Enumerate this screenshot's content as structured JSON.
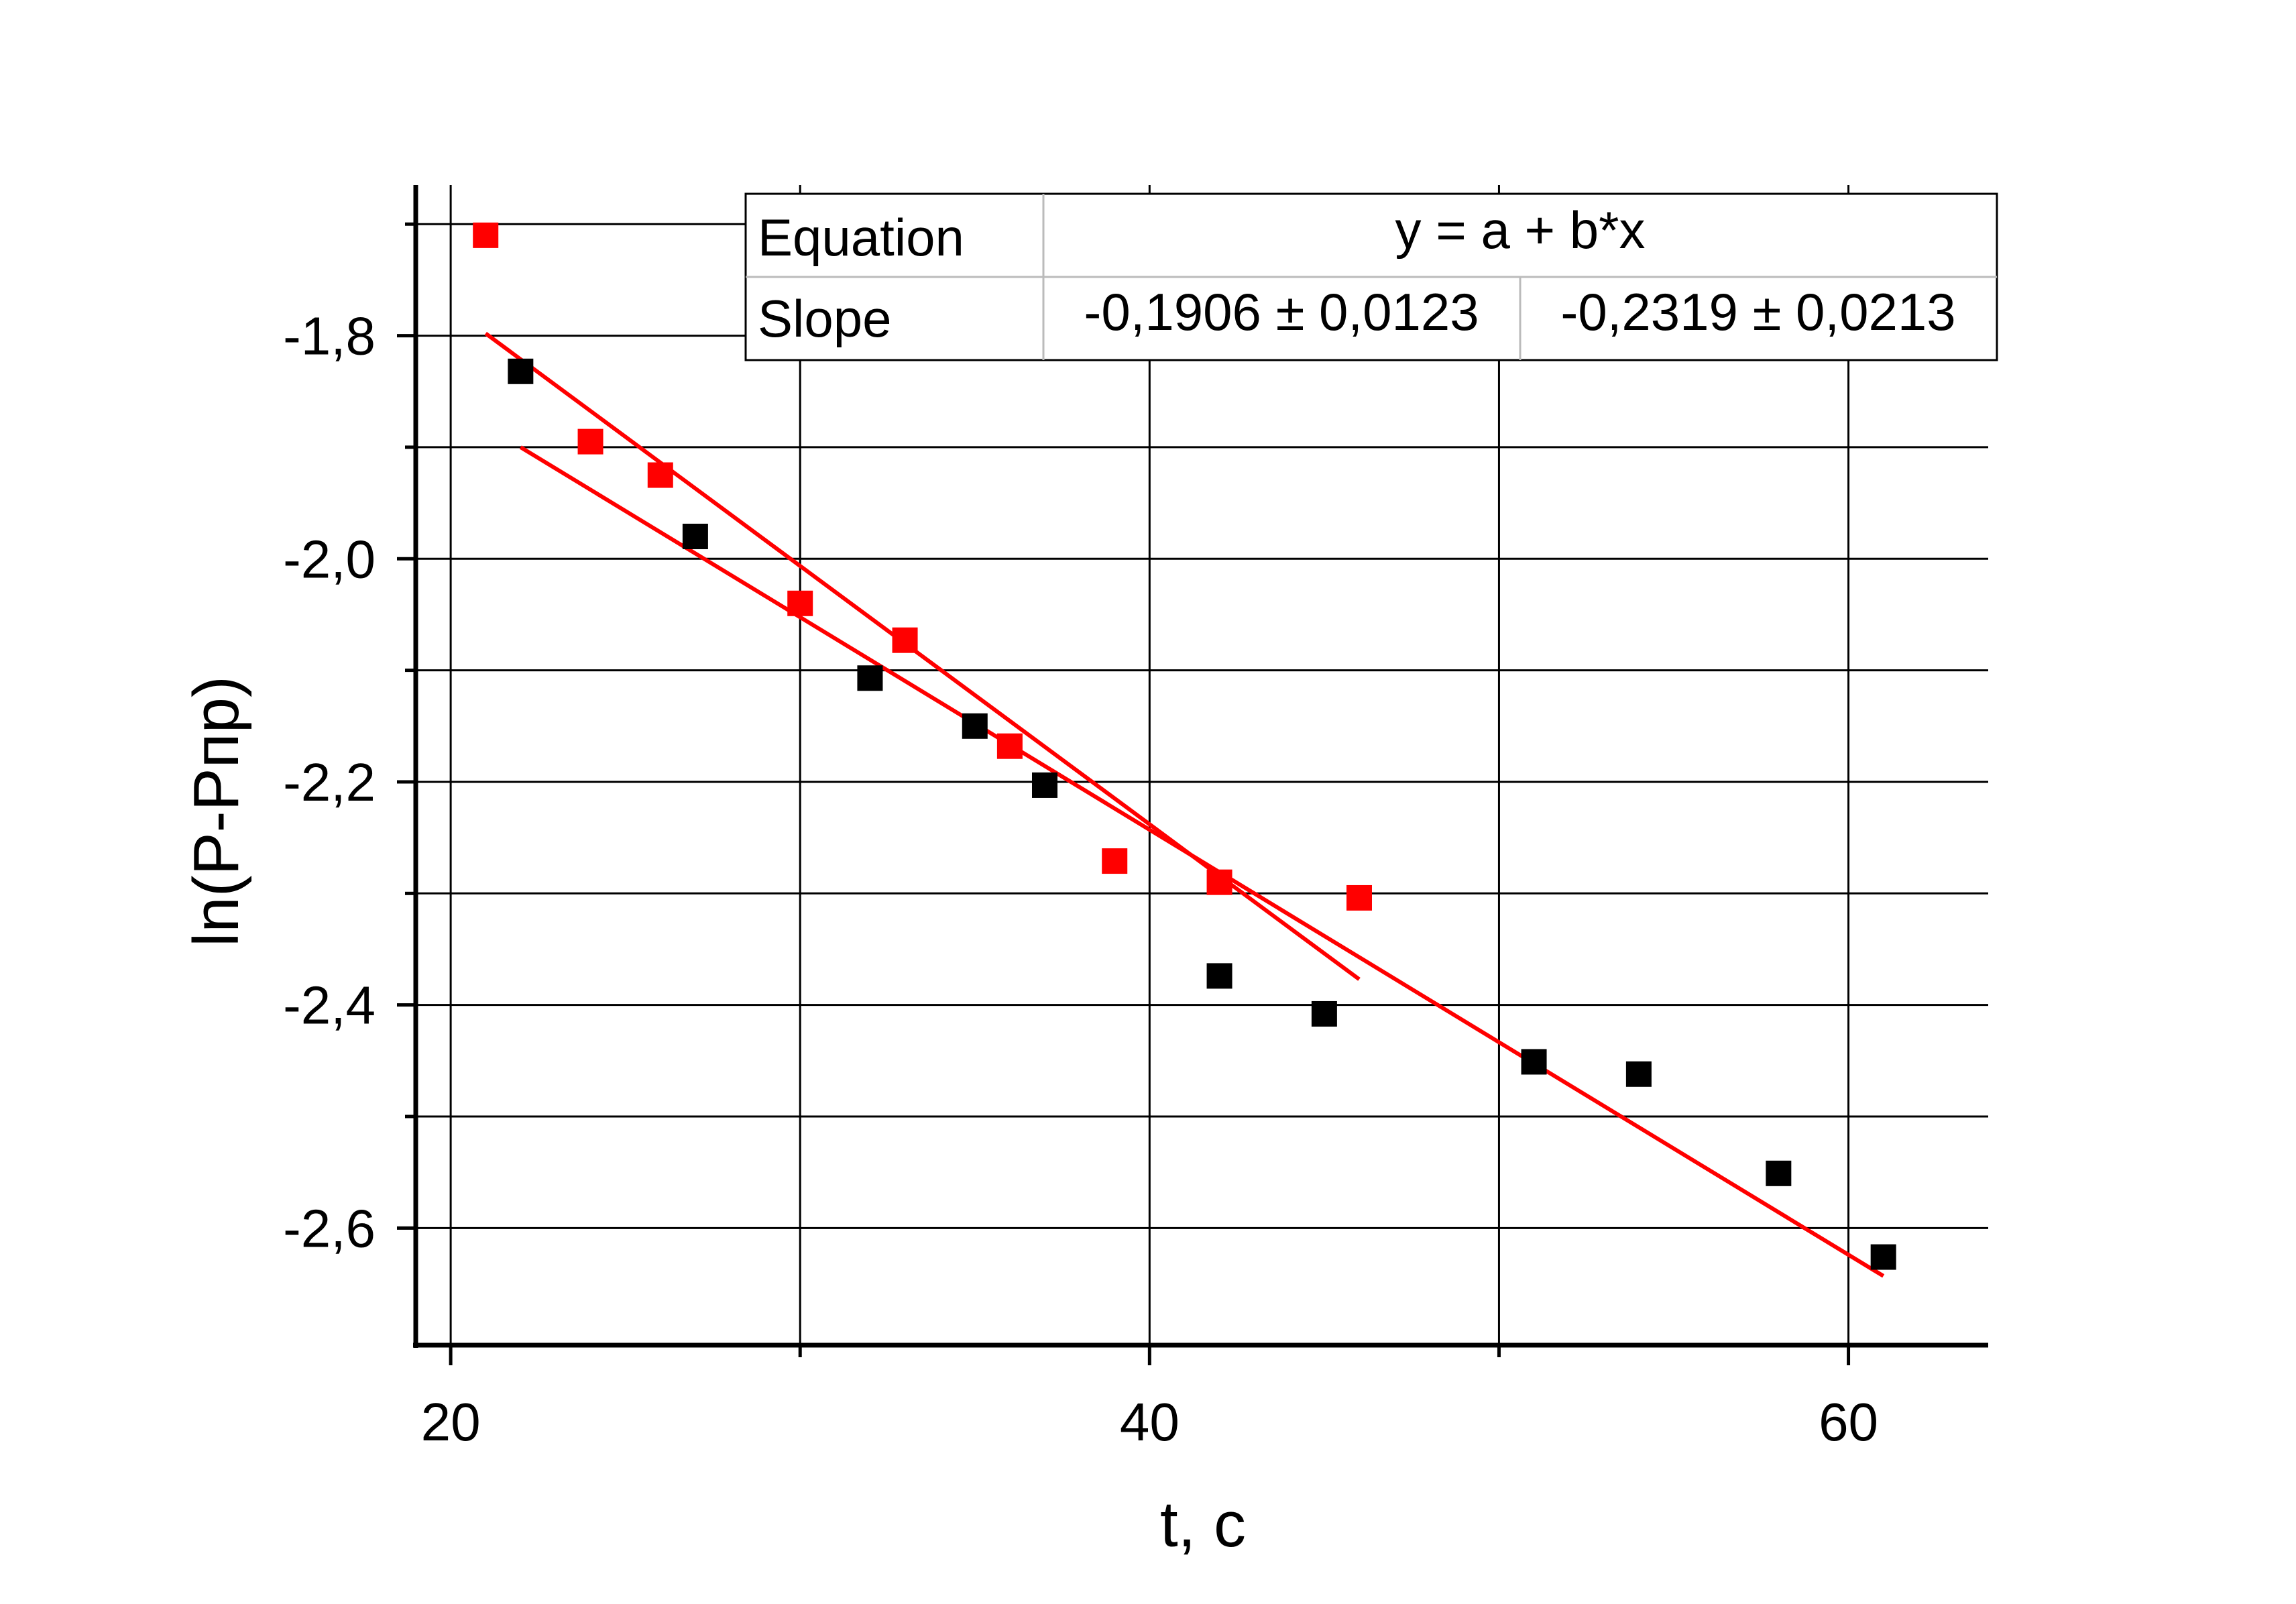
{
  "chart_data": {
    "type": "scatter",
    "title": "",
    "xlabel": "t, c",
    "ylabel": "ln(P-Pпр)",
    "xlim": [
      19,
      64
    ],
    "ylim": [
      -2.705,
      -1.665
    ],
    "x_ticks": [
      20,
      40,
      60
    ],
    "x_tick_labels": [
      "20",
      "40",
      "60"
    ],
    "y_ticks": [
      -1.8,
      -2.0,
      -2.2,
      -2.4,
      -2.6
    ],
    "y_tick_labels": [
      "-1,8",
      "-2,0",
      "-2,2",
      "-2,4",
      "-2,6"
    ],
    "grid": true,
    "series": [
      {
        "color": "#ff0000",
        "marker": "square",
        "points": [
          [
            21,
            -1.71
          ],
          [
            24,
            -1.895
          ],
          [
            26,
            -1.925
          ],
          [
            30,
            -2.04
          ],
          [
            33,
            -2.073
          ],
          [
            36,
            -2.168
          ],
          [
            39,
            -2.271
          ],
          [
            42,
            -2.29
          ],
          [
            46,
            -2.304
          ]
        ],
        "fit": {
          "slope": -0.2319,
          "slope_error": 0.0213,
          "x_range": [
            21,
            46
          ],
          "y_range": [
            -1.798,
            -2.377
          ]
        }
      },
      {
        "color": "#000000",
        "marker": "square",
        "points": [
          [
            22,
            -1.832
          ],
          [
            27,
            -1.98
          ],
          [
            32,
            -2.107
          ],
          [
            35,
            -2.15
          ],
          [
            37,
            -2.203
          ],
          [
            42,
            -2.374
          ],
          [
            45,
            -2.408
          ],
          [
            51,
            -2.451
          ],
          [
            54,
            -2.462
          ],
          [
            58,
            -2.551
          ],
          [
            61,
            -2.626
          ]
        ],
        "fit": {
          "slope": -0.1906,
          "slope_error": 0.0123,
          "x_range": [
            22,
            61
          ],
          "y_range": [
            -1.9,
            -2.643
          ]
        }
      }
    ],
    "fit_line_color": "#ff0000",
    "table": {
      "rows": [
        {
          "label": "Equation",
          "value": "y = a + b*x"
        },
        {
          "label": "Slope",
          "values": [
            "-0,1906 ± 0,0123",
            "-0,2319 ± 0,0213"
          ]
        }
      ]
    }
  }
}
